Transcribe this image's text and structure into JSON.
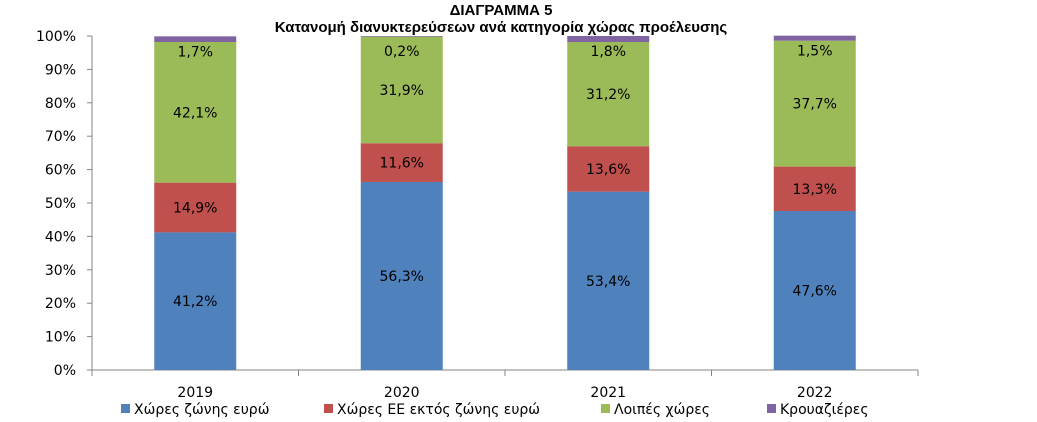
{
  "chart_data": {
    "type": "bar",
    "stacked": true,
    "title": "ΔΙΑΓΡΑΜΜΑ 5",
    "subtitle": "Κατανομή διανυκτερεύσεων ανά κατηγορία χώρας προέλευσης",
    "categories": [
      "2019",
      "2020",
      "2021",
      "2022"
    ],
    "ylim": [
      0,
      100
    ],
    "yticks": [
      "0%",
      "10%",
      "20%",
      "30%",
      "40%",
      "50%",
      "60%",
      "70%",
      "80%",
      "90%",
      "100%"
    ],
    "grid": false,
    "legend_position": "bottom",
    "series": [
      {
        "name": "Χώρες ζώνης ευρώ",
        "color": "#4F81BD",
        "values": [
          41.2,
          56.3,
          53.4,
          47.6
        ],
        "labels": [
          "41,2%",
          "56,3%",
          "53,4%",
          "47,6%"
        ]
      },
      {
        "name": "Χώρες ΕΕ εκτός ζώνης ευρώ",
        "color": "#C0504D",
        "values": [
          14.9,
          11.6,
          13.6,
          13.3
        ],
        "labels": [
          "14,9%",
          "11,6%",
          "13,6%",
          "13,3%"
        ]
      },
      {
        "name": "Λοιπές χώρες",
        "color": "#9BBB59",
        "values": [
          42.1,
          31.9,
          31.2,
          37.7
        ],
        "labels": [
          "42,1%",
          "31,9%",
          "31,2%",
          "37,7%"
        ]
      },
      {
        "name": "Κρουαζιέρες",
        "color": "#8064A2",
        "values": [
          1.7,
          0.2,
          1.8,
          1.5
        ],
        "labels": [
          "1,7%",
          "0,2%",
          "1,8%",
          "1,5%"
        ]
      }
    ]
  }
}
